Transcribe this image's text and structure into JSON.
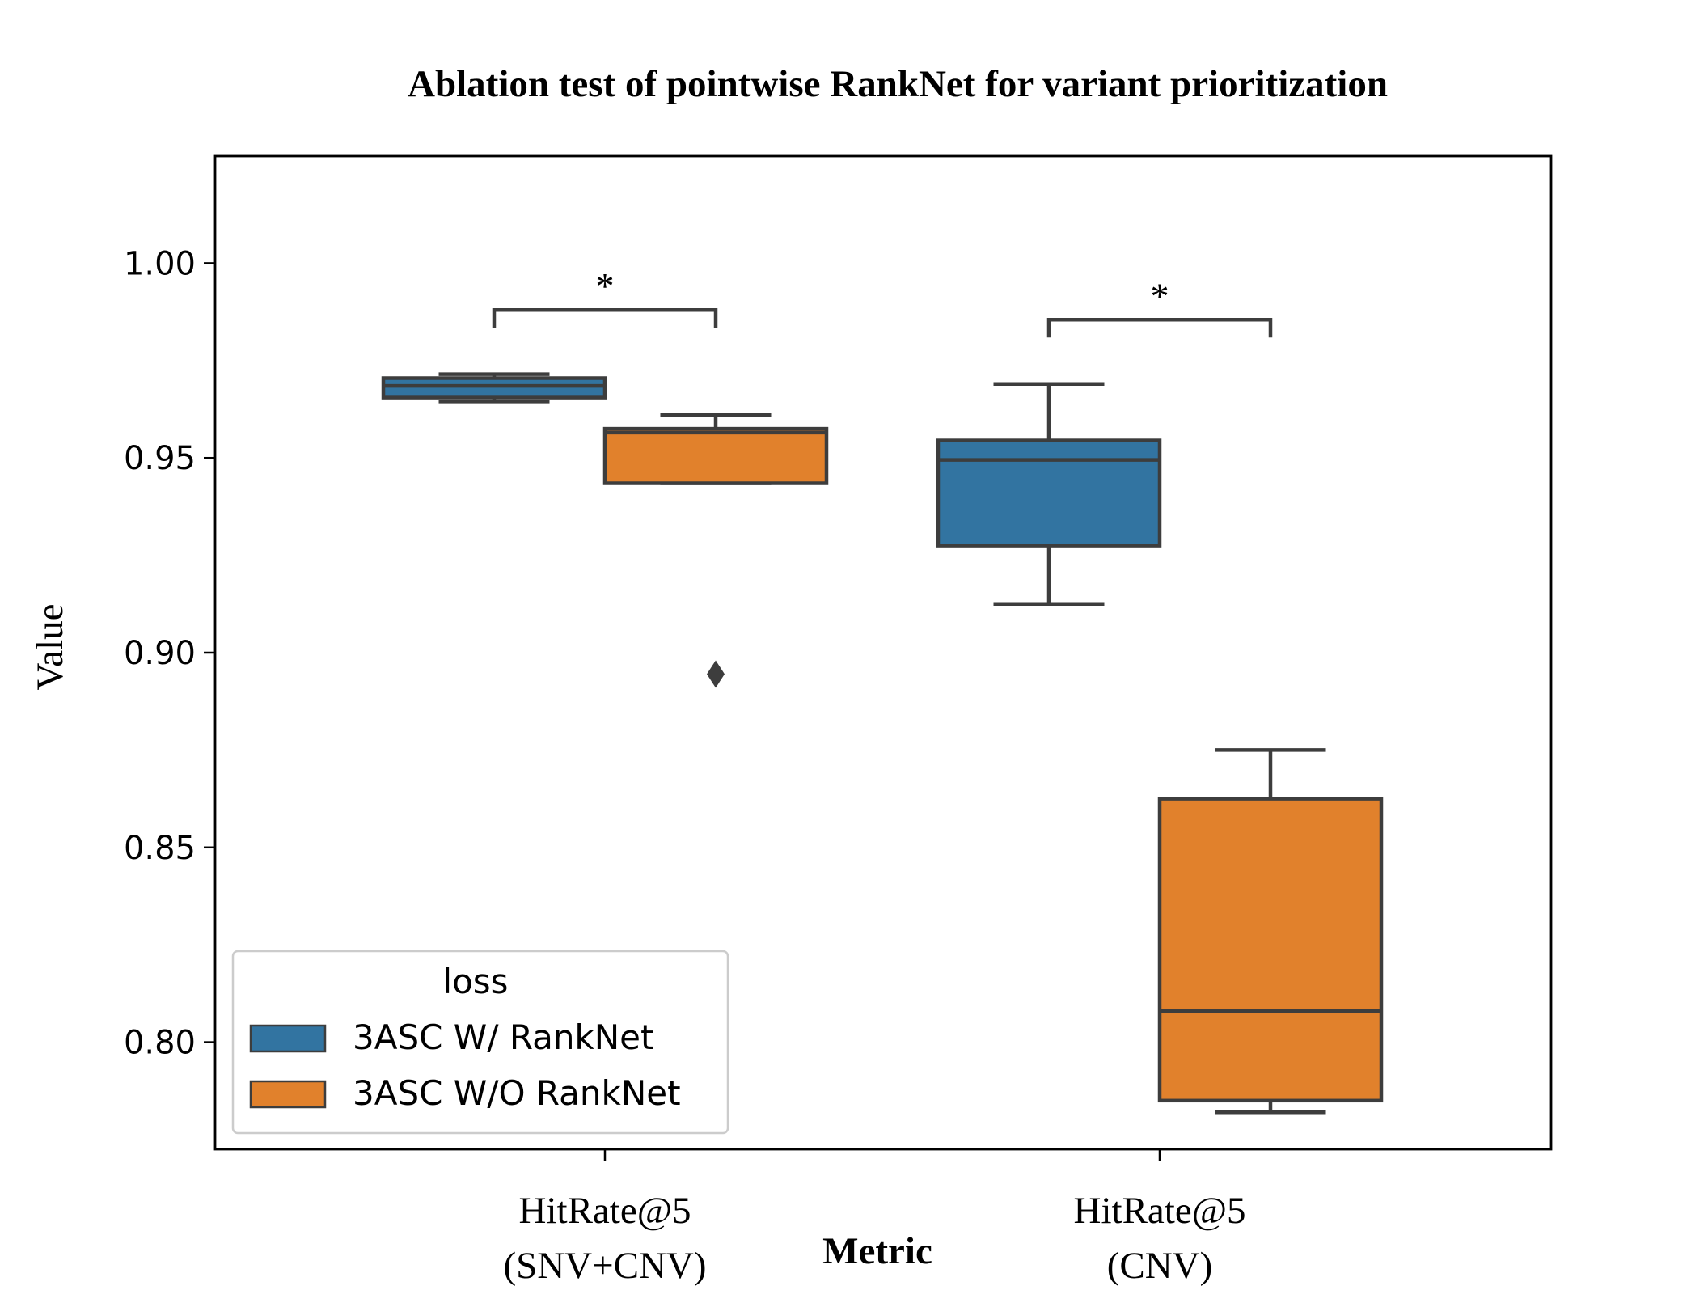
{
  "chart_data": {
    "type": "box",
    "title": "Ablation test of pointwise RankNet for variant prioritization",
    "xlabel": "Metric",
    "ylabel": "Value",
    "ylim": [
      0.7725,
      1.0275
    ],
    "yticks": [
      "0.80",
      "0.85",
      "0.90",
      "0.95",
      "1.00"
    ],
    "ytick_values": [
      0.8,
      0.85,
      0.9,
      0.95,
      1.0
    ],
    "categories": [
      {
        "line1": "HitRate@5",
        "line2": "(SNV+CNV)"
      },
      {
        "line1": "HitRate@5",
        "line2": "(CNV)"
      }
    ],
    "legend": {
      "title": "loss",
      "placement": "lower-left"
    },
    "series": [
      {
        "name": "3ASC W/ RankNet",
        "color": "#3274a1",
        "boxes": [
          {
            "whisker_low": 0.9645,
            "q1": 0.9655,
            "median": 0.9685,
            "q3": 0.9705,
            "whisker_high": 0.9715,
            "outliers": []
          },
          {
            "whisker_low": 0.9125,
            "q1": 0.9275,
            "median": 0.9495,
            "q3": 0.9545,
            "whisker_high": 0.969,
            "outliers": []
          }
        ]
      },
      {
        "name": "3ASC W/O RankNet",
        "color": "#e1812c",
        "boxes": [
          {
            "whisker_low": 0.9435,
            "q1": 0.9435,
            "median": 0.9565,
            "q3": 0.9575,
            "whisker_high": 0.961,
            "outliers": [
              0.8945
            ]
          },
          {
            "whisker_low": 0.782,
            "q1": 0.785,
            "median": 0.808,
            "q3": 0.8625,
            "whisker_high": 0.875,
            "outliers": []
          }
        ]
      }
    ],
    "significance": [
      {
        "category_index": 0,
        "bracket_y": 0.988,
        "label": "*"
      },
      {
        "category_index": 1,
        "bracket_y": 0.9855,
        "label": "*"
      }
    ]
  }
}
